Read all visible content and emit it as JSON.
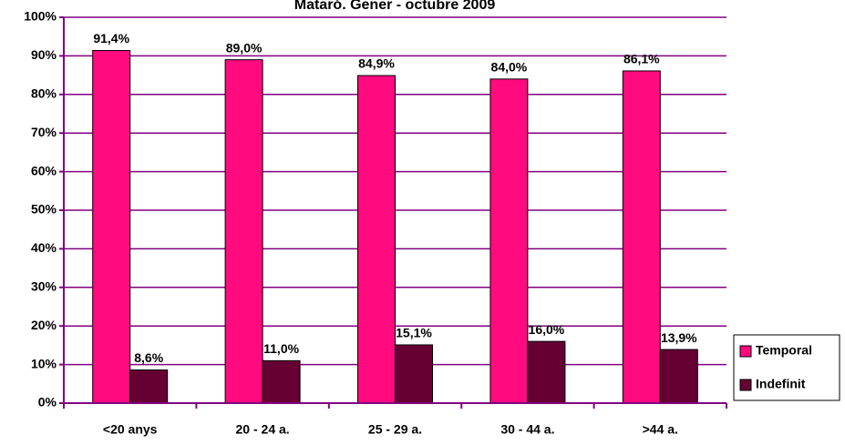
{
  "chart_data": {
    "type": "bar",
    "title": "Mataró. Gener - octubre 2009",
    "categories": [
      "<20 anys",
      "20 - 24 a.",
      "25 - 29 a.",
      "30 - 44 a.",
      ">44 a."
    ],
    "series": [
      {
        "name": "Temporal",
        "color": "#ff0a7f",
        "values": [
          91.4,
          89.0,
          84.9,
          84.0,
          86.1
        ],
        "value_labels": [
          "91,4%",
          "89,0%",
          "84,9%",
          "84,0%",
          "86,1%"
        ]
      },
      {
        "name": "Indefinit",
        "color": "#660033",
        "values": [
          8.6,
          11.0,
          15.1,
          16.0,
          13.9
        ],
        "value_labels": [
          "8,6%",
          "11,0%",
          "15,1%",
          "16,0%",
          "13,9%"
        ]
      }
    ],
    "ylim": [
      0,
      100
    ],
    "yticks": [
      {
        "value": 0,
        "label": "0%"
      },
      {
        "value": 10,
        "label": "10%"
      },
      {
        "value": 20,
        "label": "20%"
      },
      {
        "value": 30,
        "label": "30%"
      },
      {
        "value": 40,
        "label": "40%"
      },
      {
        "value": 50,
        "label": "50%"
      },
      {
        "value": 60,
        "label": "60%"
      },
      {
        "value": 70,
        "label": "70%"
      },
      {
        "value": 80,
        "label": "80%"
      },
      {
        "value": 90,
        "label": "90%"
      },
      {
        "value": 100,
        "label": "100%"
      }
    ],
    "grid": true,
    "legend": "right"
  }
}
